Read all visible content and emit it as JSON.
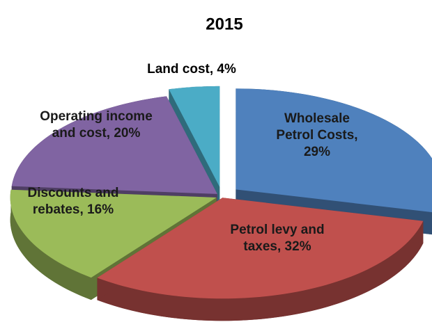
{
  "chart_data": {
    "type": "pie",
    "title": "2015",
    "labels": [
      "Wholesale Petrol Costs, 29%",
      "Petrol levy and taxes, 32%",
      "Discounts and rebates, 16%",
      "Operating income and cost, 20%",
      "Land cost, 4%"
    ],
    "values": [
      29,
      32,
      16,
      20,
      4
    ],
    "colors": [
      "#4f81bd",
      "#c0504d",
      "#9bbb59",
      "#8064a2",
      "#4bacc6"
    ]
  }
}
